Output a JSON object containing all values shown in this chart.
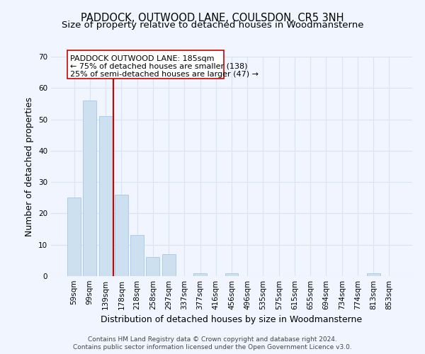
{
  "title": "PADDOCK, OUTWOOD LANE, COULSDON, CR5 3NH",
  "subtitle": "Size of property relative to detached houses in Woodmansterne",
  "xlabel": "Distribution of detached houses by size in Woodmansterne",
  "ylabel": "Number of detached properties",
  "bar_labels": [
    "59sqm",
    "99sqm",
    "139sqm",
    "178sqm",
    "218sqm",
    "258sqm",
    "297sqm",
    "337sqm",
    "377sqm",
    "416sqm",
    "456sqm",
    "496sqm",
    "535sqm",
    "575sqm",
    "615sqm",
    "655sqm",
    "694sqm",
    "734sqm",
    "774sqm",
    "813sqm",
    "853sqm"
  ],
  "bar_values": [
    25,
    56,
    51,
    26,
    13,
    6,
    7,
    0,
    1,
    0,
    1,
    0,
    0,
    0,
    0,
    0,
    0,
    0,
    0,
    1,
    0
  ],
  "bar_color": "#cce0f0",
  "bar_edge_color": "#aaccee",
  "vline_index": 3,
  "vline_color": "#cc0000",
  "ylim": [
    0,
    70
  ],
  "yticks": [
    0,
    10,
    20,
    30,
    40,
    50,
    60,
    70
  ],
  "annotation_line1": "PADDOCK OUTWOOD LANE: 185sqm",
  "annotation_line2": "← 75% of detached houses are smaller (138)",
  "annotation_line3": "25% of semi-detached houses are larger (47) →",
  "footer_line1": "Contains HM Land Registry data © Crown copyright and database right 2024.",
  "footer_line2": "Contains public sector information licensed under the Open Government Licence v3.0.",
  "background_color": "#f0f5ff",
  "grid_color": "#d8e4f0",
  "title_fontsize": 10.5,
  "subtitle_fontsize": 9.5,
  "axis_label_fontsize": 9,
  "tick_fontsize": 7.5,
  "annotation_fontsize": 8,
  "footer_fontsize": 6.5
}
